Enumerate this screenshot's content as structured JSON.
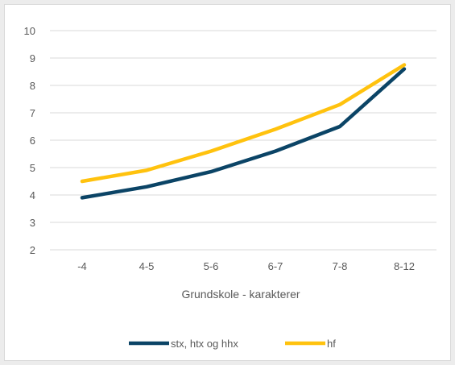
{
  "chart_data": {
    "type": "line",
    "categories": [
      "-4",
      "4-5",
      "5-6",
      "6-7",
      "7-8",
      "8-12"
    ],
    "series": [
      {
        "name": "stx, htx og hhx",
        "color": "#0b4466",
        "values": [
          3.9,
          4.3,
          4.85,
          5.6,
          6.5,
          8.6
        ]
      },
      {
        "name": "hf",
        "color": "#ffc20e",
        "values": [
          4.5,
          4.9,
          5.6,
          6.4,
          7.3,
          8.75
        ]
      }
    ],
    "xlabel": "Grundskole - karakterer",
    "ylabel": "",
    "ylim": [
      2,
      10
    ],
    "yticks": [
      2,
      3,
      4,
      5,
      6,
      7,
      8,
      9,
      10
    ],
    "grid": true,
    "legend": "bottom"
  }
}
